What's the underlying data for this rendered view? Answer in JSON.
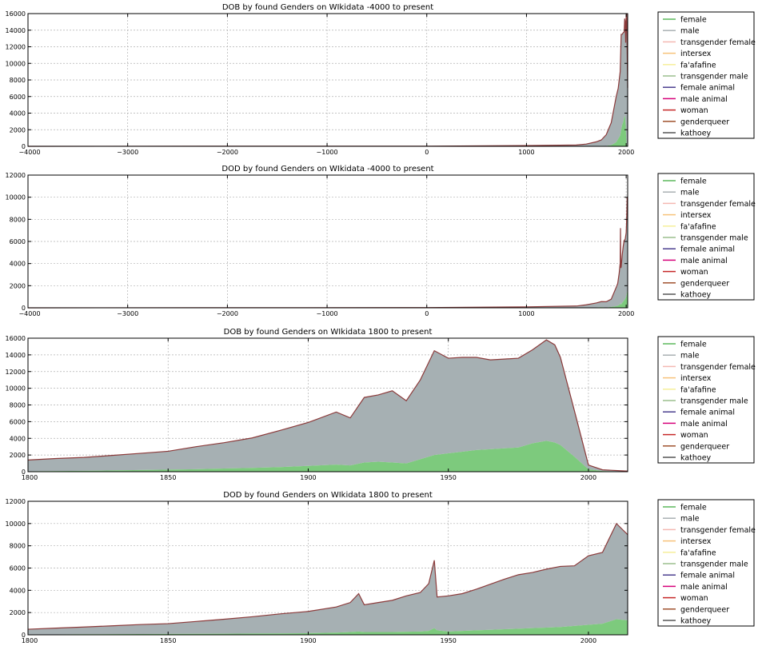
{
  "figure": {
    "legend_entries": [
      {
        "label": "female",
        "color": "#5cb85c"
      },
      {
        "label": "male",
        "color": "#a9b0b3"
      },
      {
        "label": "transgender female",
        "color": "#f4b9b2"
      },
      {
        "label": "intersex",
        "color": "#f7c27a"
      },
      {
        "label": "fa'afafine",
        "color": "#f5ef9a"
      },
      {
        "label": "transgender male",
        "color": "#9bbf8d"
      },
      {
        "label": "female animal",
        "color": "#4b3f8f"
      },
      {
        "label": "male animal",
        "color": "#d6007a"
      },
      {
        "label": "woman",
        "color": "#c62828"
      },
      {
        "label": "genderqueer",
        "color": "#a0522d"
      },
      {
        "label": "kathoey",
        "color": "#555555"
      }
    ],
    "colors": {
      "female_fill": "#7dca7d",
      "male_fill": "#a6b0b3",
      "outline": "#8b3a3a",
      "grid": "#b0b0b0"
    }
  },
  "chart_data": [
    {
      "type": "area",
      "stacked": true,
      "title": "DOB by found Genders on WIkidata -4000 to present",
      "xlim": [
        -4000,
        2015
      ],
      "ylim": [
        0,
        16000
      ],
      "xticks": [
        -4000,
        -3000,
        -2000,
        -1000,
        0,
        1000,
        2000
      ],
      "xtick_labels": [
        "−4000",
        "−3000",
        "−2000",
        "−1000",
        "0",
        "1000",
        "2000"
      ],
      "yticks": [
        0,
        2000,
        4000,
        6000,
        8000,
        10000,
        12000,
        14000,
        16000
      ],
      "ytick_labels": [
        "0",
        "2000",
        "4000",
        "6000",
        "8000",
        "10000",
        "12000",
        "14000",
        "16000"
      ],
      "grid": true,
      "legend": "outside-right",
      "x": [
        -4000,
        0,
        1000,
        1500,
        1600,
        1700,
        1750,
        1800,
        1850,
        1900,
        1920,
        1940,
        1950,
        1960,
        1970,
        1980,
        1985,
        1990,
        1995,
        2000,
        2005,
        2015
      ],
      "series": [
        {
          "name": "female",
          "values": [
            0,
            0,
            5,
            10,
            20,
            40,
            60,
            50,
            150,
            500,
            900,
            1300,
            2000,
            2600,
            2900,
            3500,
            3700,
            3500,
            2500,
            1000,
            200,
            50
          ]
        },
        {
          "name": "male",
          "values": [
            0,
            20,
            80,
            150,
            250,
            500,
            700,
            1350,
            2700,
            5500,
            6100,
            7700,
            11500,
            10900,
            10800,
            10300,
            11700,
            11500,
            10000,
            14800,
            15800,
            7000
          ]
        }
      ]
    },
    {
      "type": "area",
      "stacked": true,
      "title": "DOD by found Genders on WIkidata -4000 to present",
      "xlim": [
        -4000,
        2015
      ],
      "ylim": [
        0,
        12000
      ],
      "xticks": [
        -4000,
        -3000,
        -2000,
        -1000,
        0,
        1000,
        2000
      ],
      "xtick_labels": [
        "−4000",
        "−3000",
        "−2000",
        "−1000",
        "0",
        "1000",
        "2000"
      ],
      "yticks": [
        0,
        2000,
        4000,
        6000,
        8000,
        10000,
        12000
      ],
      "ytick_labels": [
        "0",
        "2000",
        "4000",
        "6000",
        "8000",
        "10000",
        "12000"
      ],
      "grid": true,
      "legend": "outside-right",
      "x": [
        -4000,
        0,
        1000,
        1500,
        1600,
        1700,
        1750,
        1800,
        1850,
        1900,
        1915,
        1930,
        1940,
        1943,
        1946,
        1950,
        1960,
        1970,
        1980,
        1990,
        2000,
        2005,
        2010,
        2015
      ],
      "series": [
        {
          "name": "female",
          "values": [
            0,
            0,
            5,
            10,
            20,
            40,
            60,
            30,
            80,
            150,
            200,
            250,
            350,
            500,
            300,
            300,
            450,
            550,
            700,
            800,
            1000,
            1200,
            1500,
            1300
          ]
        },
        {
          "name": "male",
          "values": [
            0,
            20,
            80,
            150,
            250,
            400,
            500,
            520,
            700,
            1700,
            2000,
            2900,
            3700,
            6700,
            3300,
            3400,
            4300,
            5000,
            5400,
            5400,
            5800,
            6800,
            8500,
            8700
          ]
        }
      ]
    },
    {
      "type": "area",
      "stacked": true,
      "title": "DOB by found Genders on WIkidata 1800 to present",
      "xlim": [
        1800,
        2014
      ],
      "ylim": [
        0,
        16000
      ],
      "xticks": [
        1800,
        1850,
        1900,
        1950,
        2000
      ],
      "xtick_labels": [
        "1800",
        "1850",
        "1900",
        "1950",
        "2000"
      ],
      "yticks": [
        0,
        2000,
        4000,
        6000,
        8000,
        10000,
        12000,
        14000,
        16000
      ],
      "ytick_labels": [
        "0",
        "2000",
        "4000",
        "6000",
        "8000",
        "10000",
        "12000",
        "14000",
        "16000"
      ],
      "grid": true,
      "legend": "outside-right",
      "x": [
        1800,
        1810,
        1820,
        1830,
        1840,
        1850,
        1860,
        1870,
        1880,
        1890,
        1900,
        1910,
        1915,
        1920,
        1925,
        1930,
        1935,
        1940,
        1945,
        1950,
        1955,
        1960,
        1965,
        1970,
        1975,
        1980,
        1985,
        1988,
        1990,
        1995,
        2000,
        2005,
        2014
      ],
      "series": [
        {
          "name": "female",
          "values": [
            50,
            80,
            110,
            150,
            200,
            250,
            300,
            380,
            450,
            550,
            700,
            850,
            750,
            1100,
            1200,
            1100,
            1000,
            1500,
            2000,
            2200,
            2400,
            2600,
            2700,
            2800,
            2900,
            3400,
            3700,
            3500,
            3200,
            1800,
            300,
            80,
            20
          ]
        },
        {
          "name": "male",
          "values": [
            1350,
            1500,
            1600,
            1800,
            2000,
            2200,
            2700,
            3100,
            3600,
            4400,
            5200,
            6300,
            5700,
            7800,
            8000,
            8600,
            7500,
            9500,
            12500,
            11400,
            11300,
            11100,
            10700,
            10700,
            10700,
            11200,
            12100,
            11700,
            10500,
            5500,
            500,
            150,
            50
          ]
        }
      ]
    },
    {
      "type": "area",
      "stacked": true,
      "title": "DOD by found Genders on WIkidata 1800 to present",
      "xlim": [
        1800,
        2014
      ],
      "ylim": [
        0,
        12000
      ],
      "xticks": [
        1800,
        1850,
        1900,
        1950,
        2000
      ],
      "xtick_labels": [
        "1800",
        "1850",
        "1900",
        "1950",
        "2000"
      ],
      "yticks": [
        0,
        2000,
        4000,
        6000,
        8000,
        10000,
        12000
      ],
      "ytick_labels": [
        "0",
        "2000",
        "4000",
        "6000",
        "8000",
        "10000",
        "12000"
      ],
      "grid": true,
      "legend": "outside-right",
      "x": [
        1800,
        1810,
        1820,
        1830,
        1840,
        1850,
        1860,
        1870,
        1880,
        1890,
        1900,
        1910,
        1915,
        1918,
        1920,
        1925,
        1930,
        1935,
        1940,
        1943,
        1945,
        1946,
        1950,
        1955,
        1960,
        1965,
        1970,
        1975,
        1980,
        1985,
        1990,
        1995,
        2000,
        2005,
        2010,
        2014
      ],
      "series": [
        {
          "name": "female",
          "values": [
            30,
            40,
            50,
            60,
            70,
            80,
            90,
            100,
            120,
            130,
            150,
            200,
            250,
            300,
            250,
            250,
            250,
            280,
            300,
            350,
            600,
            400,
            300,
            350,
            400,
            450,
            500,
            550,
            600,
            650,
            700,
            800,
            900,
            1000,
            1400,
            1300
          ]
        },
        {
          "name": "male",
          "values": [
            470,
            560,
            650,
            750,
            850,
            920,
            1110,
            1300,
            1500,
            1750,
            1950,
            2300,
            2650,
            3400,
            2450,
            2650,
            2850,
            3220,
            3500,
            4250,
            6100,
            3000,
            3200,
            3350,
            3700,
            4100,
            4500,
            4850,
            5000,
            5250,
            5450,
            5400,
            6200,
            6400,
            8600,
            7700
          ]
        }
      ]
    }
  ]
}
